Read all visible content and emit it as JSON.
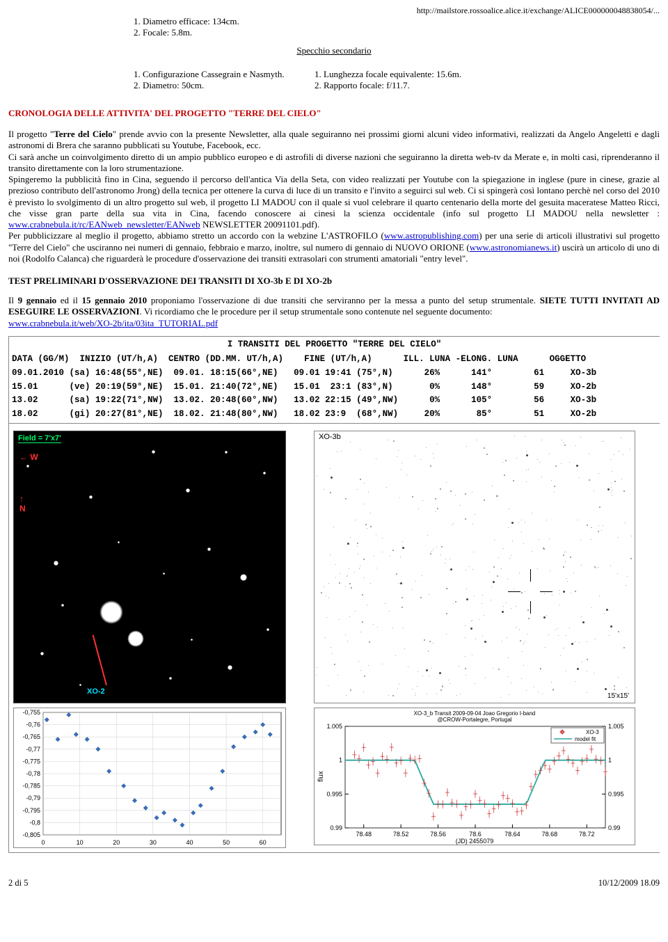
{
  "topUrl": "http://mailstore.rossoalice.alice.it/exchange/ALICE000000048838054/...",
  "specA": {
    "l1": "1. Diametro efficace: 134cm.",
    "l2": "2. Focale: 5.8m."
  },
  "secMirrorTitle": "Specchio secondario",
  "specB": {
    "left1": "1. Configurazione Cassegrain e Nasmyth.",
    "left2": "2. Diametro: 50cm.",
    "right1": "1. Lunghezza focale equivalente: 15.6m.",
    "right2": "2. Rapporto focale: f/11.7."
  },
  "headingCrono": "CRONOLOGIA DELLE ATTIVITA' DEL PROGETTO \"TERRE DEL CIELO\"",
  "para1a": "Il progetto \"",
  "para1b": "Terre del Cielo",
  "para1c": "\" prende avvio con la presente Newsletter, alla quale seguiranno nei prossimi giorni alcuni video informativi, realizzati da Angelo Angeletti e dagli astronomi di Brera che saranno pubblicati su Youtube, Facebook, ecc.",
  "para2": "Ci sarà anche un coinvolgimento diretto di un ampio pubblico europeo e di astrofili di diverse nazioni che seguiranno la diretta web-tv da Merate e, in molti casi, riprenderanno  il transito direttamente con la loro strumentazione.",
  "para3": "Spingeremo la pubblicità fino in Cina, seguendo il percorso dell'antica Via della Seta, con video realizzati per Youtube con la spiegazione in inglese (pure in cinese, grazie al prezioso contributo dell'astronomo Jrong) della tecnica per ottenere la curva di luce di un transito e l'invito a seguirci sul web. Ci si spingerà così lontano perchè nel corso del 2010 è previsto lo svolgimento di un altro progetto sul web, il progetto LI MADOU con il quale si vuol celebrare il quarto centenario della morte del gesuita maceratese Matteo Ricci, che visse gran parte della sua vita in Cina, facendo conoscere ai cinesi la scienza occidentale (info sul progetto LI MADOU nella newsletter : ",
  "link1": "www.crabnebula.it/rc/EANweb_newsletter/EANweb",
  "para3b": " NEWSLETTER 20091101.pdf).",
  "para4a": "Per pubblicizzare al meglio il progetto, abbiamo stretto un accordo con la webzine L'ASTROFILO (",
  "link2": "www.astropublishing.com",
  "para4b": ") per una serie di articoli illustrativi sul progetto \"Terre del Cielo\" che usciranno nei numeri di gennaio, febbraio e marzo,  inoltre, sul numero di gennaio di NUOVO ORIONE (",
  "link3": "www.astronomianews.it",
  "para4c": ") uscirà un articolo di uno di noi (Rodolfo Calanca) che riguarderà le procedure d'osservazione dei transiti extrasolari con strumenti amatoriali \"entry level\".",
  "subHeading": "TEST PRELIMINARI D'OSSERVAZIONE DEI TRANSITI DI XO-3b E DI XO-2b",
  "test1a": "Il ",
  "test1b": "9 gennaio",
  "test1c": " ed il ",
  "test1d": "15 gennaio 2010",
  "test1e": " proponiamo l'osservazione di due transiti che serviranno per la messa a punto del setup strumentale. ",
  "test1f": "SIETE TUTTI INVITATI AD ESEGUIRE LE OSSERVAZIONI",
  "test1g": ". Vi ricordiamo che le procedure per il setup strumentale sono contenute nel seguente documento: ",
  "link4": "www.crabnebula.it/web/XO-2b/ita/03ita_TUTORIAL.pdf",
  "transit": {
    "title": "I TRANSITI DEL PROGETTO \"TERRE DEL CIELO\"",
    "header": "DATA (GG/M)  INIZIO (UT/h,A)  CENTRO (DD.MM. UT/h,A)    FINE (UT/h,A)      ILL. LUNA -ELONG. LUNA      OGGETTO",
    "r1": "09.01.2010 (sa) 16:48(55°,NE)  09.01. 18:15(66°,NE)   09.01 19:41 (75°,N)      26%      141°        61     XO-3b",
    "r2": "15.01      (ve) 20:19(59°,NE)  15.01. 21:40(72°,NE)   15.01  23:1 (83°,N)       0%      148°        59     XO-2b",
    "r3": "13.02      (sa) 19:22(71°,NW)  13.02. 20:48(60°,NW)   13.02 22:15 (49°,NW)      0%      105°        56     XO-3b",
    "r4": "18.02      (gi) 20:27(81°,NE)  18.02. 21:48(80°,NW)   18.02 23:9  (68°,NW)     20%       85°        51     XO-2b"
  },
  "fieldLabel": "Field = 7'x7'",
  "xo2Label": "XO-2",
  "xo3bLabel": "XO-3b",
  "dimLabel": "15'x15'",
  "chartLeft": {
    "ylabels": [
      "-0,755",
      "-0,76",
      "-0,765",
      "-0,77",
      "-0,775",
      "-0,78",
      "-0,785",
      "-0,79",
      "-0,795",
      "-0,8",
      "-0,805"
    ],
    "xlabels": [
      "0",
      "10",
      "20",
      "30",
      "40",
      "50",
      "60"
    ],
    "points": [
      [
        1,
        -0.758
      ],
      [
        4,
        -0.766
      ],
      [
        7,
        -0.756
      ],
      [
        9,
        -0.764
      ],
      [
        12,
        -0.766
      ],
      [
        15,
        -0.77
      ],
      [
        18,
        -0.779
      ],
      [
        22,
        -0.785
      ],
      [
        25,
        -0.791
      ],
      [
        28,
        -0.794
      ],
      [
        31,
        -0.798
      ],
      [
        33,
        -0.796
      ],
      [
        36,
        -0.799
      ],
      [
        38,
        -0.801
      ],
      [
        41,
        -0.796
      ],
      [
        43,
        -0.793
      ],
      [
        46,
        -0.786
      ],
      [
        49,
        -0.779
      ],
      [
        52,
        -0.769
      ],
      [
        55,
        -0.765
      ],
      [
        58,
        -0.763
      ],
      [
        60,
        -0.76
      ],
      [
        62,
        -0.764
      ]
    ]
  },
  "chartRight": {
    "title": "XO-3_b Transit 2009-09-04 Joao Gregorio I-band\n@CROW-Portalegre, Portugal",
    "legend1": "XO-3",
    "legend2": "model fit",
    "ylab": "flux",
    "xlab": "(JD) 2455079",
    "ylabels": [
      "1.005",
      "1",
      "0.995",
      "0.99"
    ],
    "xlabels": [
      "78.48",
      "78.52",
      "78.56",
      "78.6",
      "78.64",
      "78.68",
      "78.72"
    ],
    "ylabelsR": [
      "1.005",
      "1",
      "0.995",
      "0.99"
    ]
  },
  "footer": {
    "left": "2 di 5",
    "right": "10/12/2009 18.09"
  }
}
